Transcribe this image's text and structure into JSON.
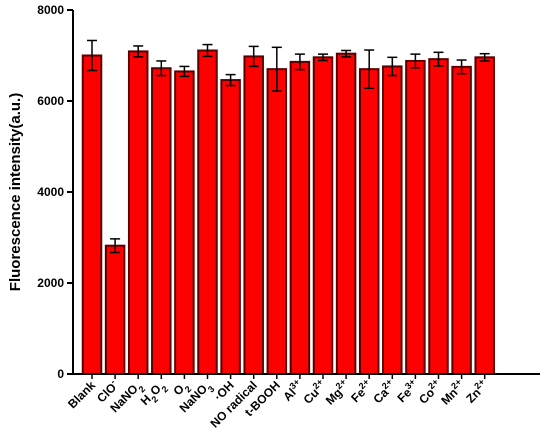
{
  "chart_data": {
    "type": "bar",
    "title": "",
    "xlabel": "",
    "ylabel": "Fluorescence intensity(a.u.)",
    "ylim": [
      0,
      8000
    ],
    "yticks": [
      0,
      2000,
      4000,
      6000,
      8000
    ],
    "grid": false,
    "bar_color": "#ff0000",
    "bar_edge_color": "#5a0000",
    "categories": [
      {
        "base": "Blank",
        "sub": "",
        "sup": ""
      },
      {
        "base": "ClO",
        "sub": "",
        "sup": "-"
      },
      {
        "base": "NaNO",
        "sub": "2",
        "sup": ""
      },
      {
        "base": "H",
        "sub": "2",
        "sup": "",
        "base2": "O",
        "sub2": "2"
      },
      {
        "base": "O",
        "sub": "2",
        "sup": ""
      },
      {
        "base": "NaNO",
        "sub": "3",
        "sup": ""
      },
      {
        "base": "·OH",
        "sub": "",
        "sup": ""
      },
      {
        "base": "NO radical",
        "sub": "",
        "sup": ""
      },
      {
        "base": "t-BOOH",
        "sub": "",
        "sup": ""
      },
      {
        "base": "Al",
        "sub": "",
        "sup": "3+"
      },
      {
        "base": "Cu",
        "sub": "",
        "sup": "2+"
      },
      {
        "base": "Mg",
        "sub": "",
        "sup": "2+"
      },
      {
        "base": "Fe",
        "sub": "",
        "sup": "2+"
      },
      {
        "base": "Ca",
        "sub": "",
        "sup": "2+"
      },
      {
        "base": "Fe",
        "sub": "",
        "sup": "3+"
      },
      {
        "base": "Co",
        "sub": "",
        "sup": "2+"
      },
      {
        "base": "Mn",
        "sub": "",
        "sup": "2+"
      },
      {
        "base": "Zn",
        "sub": "",
        "sup": "2+"
      }
    ],
    "values": [
      7000,
      2820,
      7090,
      6720,
      6650,
      7110,
      6460,
      6980,
      6700,
      6860,
      6960,
      7040,
      6700,
      6760,
      6880,
      6920,
      6750,
      6960
    ],
    "errors": [
      330,
      150,
      120,
      160,
      110,
      130,
      120,
      220,
      480,
      170,
      70,
      70,
      420,
      200,
      150,
      150,
      150,
      80
    ]
  }
}
